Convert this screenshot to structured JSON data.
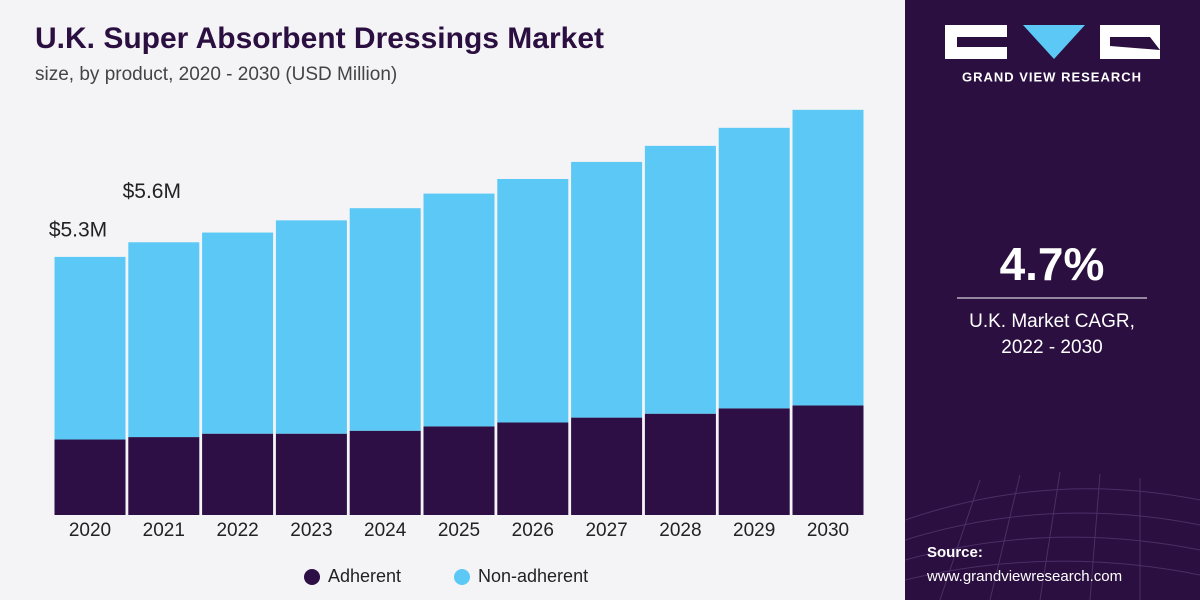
{
  "chart_data": {
    "type": "stacked-bar",
    "title": "U.K. Super Absorbent Dressings Market",
    "subtitle": "size, by product, 2020 - 2030 (USD Million)",
    "categories": [
      "2020",
      "2021",
      "2022",
      "2023",
      "2024",
      "2025",
      "2026",
      "2027",
      "2028",
      "2029",
      "2030"
    ],
    "series": [
      {
        "name": "Adherent",
        "color": "#2d0f45",
        "values": [
          1.55,
          1.6,
          1.67,
          1.67,
          1.73,
          1.82,
          1.9,
          2.0,
          2.08,
          2.19,
          2.25
        ]
      },
      {
        "name": "Non-adherent",
        "color": "#5bc8f5",
        "values": [
          3.75,
          4.0,
          4.13,
          4.38,
          4.57,
          4.78,
          5.0,
          5.25,
          5.5,
          5.76,
          6.07
        ]
      }
    ],
    "annotations": [
      {
        "text": "$5.3M",
        "value": 5.3,
        "category": "2020"
      },
      {
        "text": "$5.6M",
        "value": 5.6,
        "category": "2021"
      }
    ],
    "legend": "bottom"
  },
  "sidebar": {
    "brand": "GRAND VIEW RESEARCH",
    "cagr": "4.7%",
    "cagr_label": "U.K. Market CAGR,",
    "cagr_period": "2022 - 2030",
    "source_label": "Source:",
    "source_url": "www.grandviewresearch.com"
  }
}
